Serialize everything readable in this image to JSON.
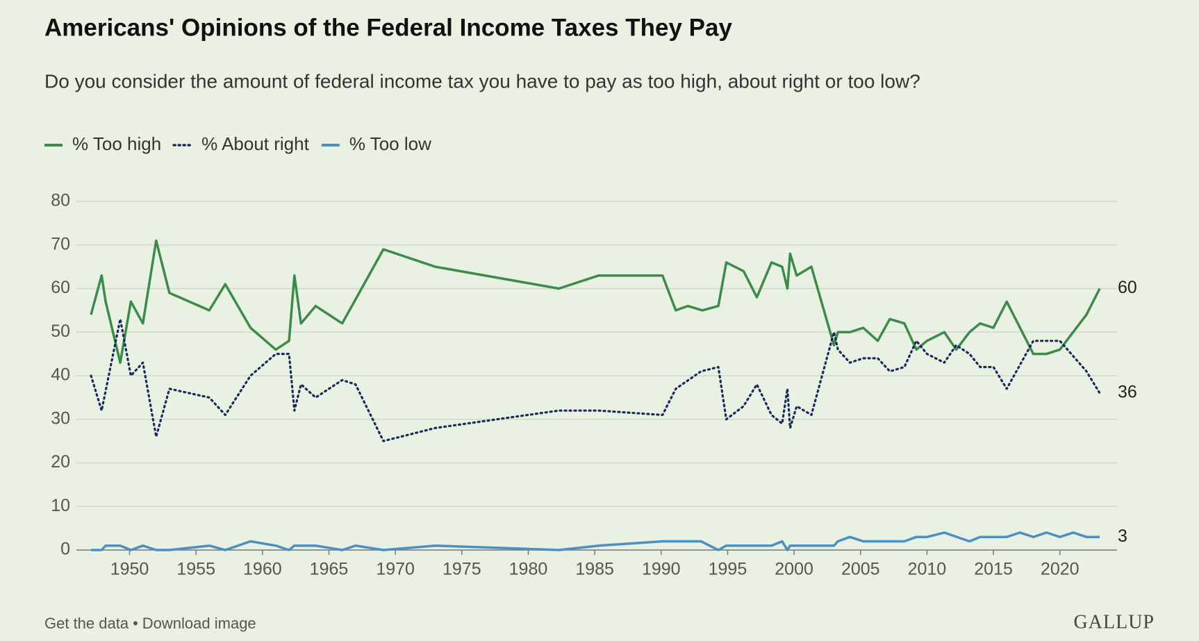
{
  "chart_data": {
    "type": "line",
    "title": "Americans' Opinions of the Federal Income Taxes They Pay",
    "subtitle": "Do you consider the amount of federal income tax you have to pay as too high, about right or too low?",
    "xlim": [
      1946,
      2024.3
    ],
    "xticks": [
      1950,
      1955,
      1960,
      1965,
      1970,
      1975,
      1980,
      1985,
      1990,
      1995,
      2000,
      2005,
      2010,
      2015,
      2020
    ],
    "ylim": [
      0,
      80
    ],
    "yticks": [
      0,
      10,
      20,
      30,
      40,
      50,
      60,
      70,
      80
    ],
    "grid": true,
    "series": [
      {
        "name": "% Too high",
        "color": "#3d8b4c",
        "style": "solid",
        "x": [
          1947.1,
          1947.9,
          1948.2,
          1949.3,
          1950.1,
          1951,
          1952,
          1953,
          1956,
          1957.2,
          1959.1,
          1961,
          1962,
          1962.4,
          1962.9,
          1964,
          1966,
          1969.1,
          1973,
          1982.3,
          1985.3,
          1990.1,
          1991.1,
          1992,
          1993.1,
          1994.3,
          1994.9,
          1996.2,
          1997.2,
          1998.3,
          1999.1,
          1999.5,
          1999.7,
          2000.2,
          2001.3,
          2003,
          2003.3,
          2004.2,
          2005.2,
          2006.3,
          2007.2,
          2008.3,
          2009.2,
          2010,
          2011.3,
          2012.2,
          2013.2,
          2014,
          2015,
          2016,
          2018,
          2019,
          2020,
          2022,
          2023
        ],
        "values": [
          54,
          63,
          57,
          43,
          57,
          52,
          71,
          59,
          55,
          61,
          51,
          46,
          48,
          63,
          52,
          56,
          52,
          69,
          65,
          60,
          63,
          63,
          55,
          56,
          55,
          56,
          66,
          64,
          58,
          66,
          65,
          60,
          68,
          63,
          65,
          47,
          50,
          50,
          51,
          48,
          53,
          52,
          46,
          48,
          50,
          46,
          50,
          52,
          51,
          57,
          45,
          45,
          46,
          54,
          60
        ]
      },
      {
        "name": "% About right",
        "color": "#1b2a5c",
        "style": "dotted",
        "x": [
          1947.1,
          1947.9,
          1949.3,
          1950.1,
          1951,
          1952,
          1953,
          1956,
          1957.2,
          1959.1,
          1961,
          1962,
          1962.4,
          1962.9,
          1964,
          1966,
          1967,
          1969.1,
          1973,
          1982.3,
          1985.3,
          1990.1,
          1991.1,
          1993,
          1994.3,
          1994.9,
          1996.2,
          1997.2,
          1998.3,
          1999.1,
          1999.5,
          1999.7,
          2000.2,
          2001.3,
          2003,
          2003.3,
          2004.2,
          2005.2,
          2006.3,
          2007.2,
          2008.3,
          2009.2,
          2010,
          2011.3,
          2012.2,
          2013.2,
          2014,
          2015,
          2016,
          2018,
          2019,
          2020,
          2022,
          2023
        ],
        "values": [
          40,
          32,
          53,
          40,
          43,
          26,
          37,
          35,
          31,
          40,
          45,
          45,
          32,
          38,
          35,
          39,
          38,
          25,
          28,
          32,
          32,
          31,
          37,
          41,
          42,
          30,
          33,
          38,
          31,
          29,
          37,
          28,
          33,
          31,
          50,
          46,
          43,
          44,
          44,
          41,
          42,
          48,
          45,
          43,
          47,
          45,
          42,
          42,
          37,
          48,
          48,
          48,
          41,
          36
        ]
      },
      {
        "name": "% Too low",
        "color": "#4b8fc3",
        "style": "solid",
        "x": [
          1947.1,
          1947.9,
          1948.2,
          1949.3,
          1950.1,
          1951,
          1952,
          1953,
          1956,
          1957.2,
          1959.1,
          1961,
          1962,
          1962.4,
          1964,
          1966,
          1967,
          1969.1,
          1973,
          1982.3,
          1985.3,
          1990.1,
          1993,
          1994.3,
          1994.9,
          1998.3,
          1999.1,
          1999.5,
          1999.7,
          2003,
          2003.3,
          2004.2,
          2005.2,
          2008.3,
          2009.2,
          2010,
          2011.3,
          2013.2,
          2014,
          2016,
          2017,
          2018,
          2019,
          2020,
          2021,
          2022,
          2023
        ],
        "values": [
          0,
          0,
          1,
          1,
          0,
          1,
          0,
          0,
          1,
          0,
          2,
          1,
          0,
          1,
          1,
          0,
          1,
          0,
          1,
          0,
          1,
          2,
          2,
          0,
          1,
          1,
          2,
          0,
          1,
          1,
          2,
          3,
          2,
          2,
          3,
          3,
          4,
          2,
          3,
          3,
          4,
          3,
          4,
          3,
          4,
          3,
          3
        ]
      }
    ]
  },
  "footer": {
    "links": [
      "Get the data",
      "Download image"
    ],
    "separator": "•",
    "brand": "GALLUP"
  }
}
